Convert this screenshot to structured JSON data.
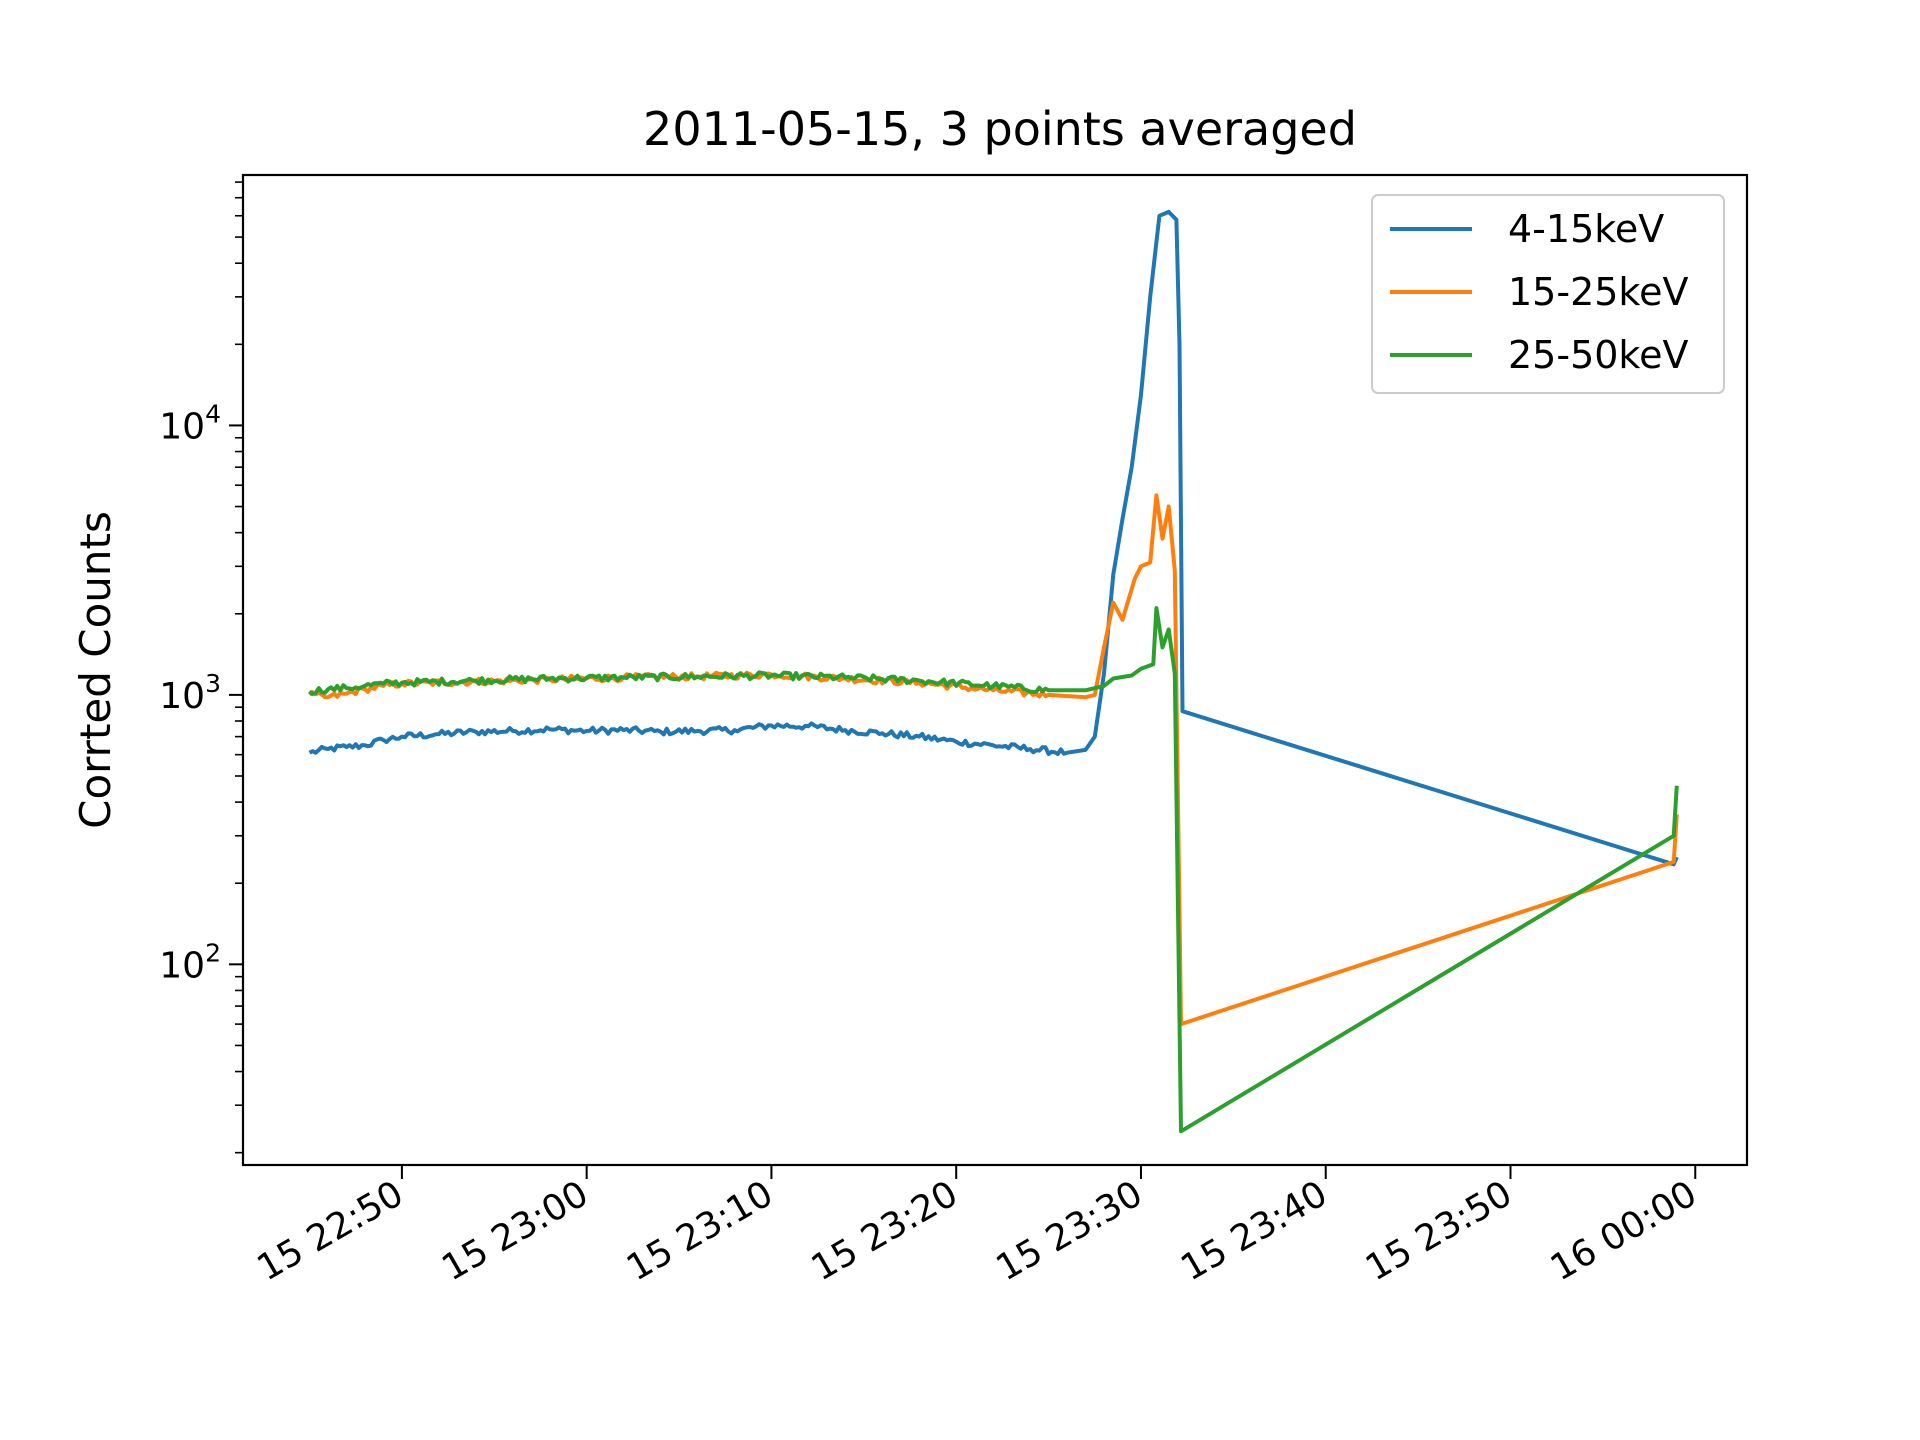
{
  "chart_data": {
    "type": "line",
    "title": "2011-05-15, 3 points averaged",
    "xlabel": "",
    "ylabel": "Corrted Counts",
    "y_scale": "log",
    "ylim": [
      18,
      85000
    ],
    "xlim": [
      "2011-05-15 22:41:24",
      "2011-05-16 00:02:48"
    ],
    "x_ticks": [
      {
        "value": "2011-05-15 22:50",
        "label": "15 22:50"
      },
      {
        "value": "2011-05-15 23:00",
        "label": "15 23:00"
      },
      {
        "value": "2011-05-15 23:10",
        "label": "15 23:10"
      },
      {
        "value": "2011-05-15 23:20",
        "label": "15 23:20"
      },
      {
        "value": "2011-05-15 23:30",
        "label": "15 23:30"
      },
      {
        "value": "2011-05-15 23:40",
        "label": "15 23:40"
      },
      {
        "value": "2011-05-15 23:50",
        "label": "15 23:50"
      },
      {
        "value": "2011-05-16 00:00",
        "label": "16 00:00"
      }
    ],
    "y_ticks": [
      {
        "value": 100,
        "base": "10",
        "exp": "2"
      },
      {
        "value": 1000,
        "base": "10",
        "exp": "3"
      },
      {
        "value": 10000,
        "base": "10",
        "exp": "4"
      }
    ],
    "grid": false,
    "legend_position": "top-right",
    "series": [
      {
        "name": "4-15keV",
        "color": "#1f77b4",
        "points": [
          [
            "2011-05-15 22:45:00",
            610
          ],
          [
            "2011-05-15 22:46:00",
            630
          ],
          [
            "2011-05-15 22:47:00",
            640
          ],
          [
            "2011-05-15 22:48:00",
            650
          ],
          [
            "2011-05-15 22:49:00",
            680
          ],
          [
            "2011-05-15 22:50:00",
            700
          ],
          [
            "2011-05-15 22:52:00",
            715
          ],
          [
            "2011-05-15 22:54:00",
            730
          ],
          [
            "2011-05-15 22:56:00",
            735
          ],
          [
            "2011-05-15 22:58:00",
            745
          ],
          [
            "2011-05-15 23:00:00",
            735
          ],
          [
            "2011-05-15 23:02:00",
            740
          ],
          [
            "2011-05-15 23:04:00",
            730
          ],
          [
            "2011-05-15 23:06:00",
            735
          ],
          [
            "2011-05-15 23:08:00",
            740
          ],
          [
            "2011-05-15 23:10:00",
            770
          ],
          [
            "2011-05-15 23:12:00",
            765
          ],
          [
            "2011-05-15 23:14:00",
            740
          ],
          [
            "2011-05-15 23:16:00",
            720
          ],
          [
            "2011-05-15 23:18:00",
            700
          ],
          [
            "2011-05-15 23:20:00",
            670
          ],
          [
            "2011-05-15 23:22:00",
            650
          ],
          [
            "2011-05-15 23:24:00",
            630
          ],
          [
            "2011-05-15 23:26:00",
            610
          ],
          [
            "2011-05-15 23:27:00",
            625
          ],
          [
            "2011-05-15 23:27:30",
            700
          ],
          [
            "2011-05-15 23:28:00",
            1200
          ],
          [
            "2011-05-15 23:28:30",
            2800
          ],
          [
            "2011-05-15 23:29:00",
            4500
          ],
          [
            "2011-05-15 23:29:30",
            7000
          ],
          [
            "2011-05-15 23:30:00",
            13000
          ],
          [
            "2011-05-15 23:30:30",
            30000
          ],
          [
            "2011-05-15 23:31:00",
            60000
          ],
          [
            "2011-05-15 23:31:30",
            62000
          ],
          [
            "2011-05-15 23:31:55",
            58000
          ],
          [
            "2011-05-15 23:32:05",
            20000
          ],
          [
            "2011-05-15 23:32:15",
            870
          ],
          [
            "2011-05-15 23:58:50",
            235
          ],
          [
            "2011-05-15 23:59:00",
            250
          ]
        ]
      },
      {
        "name": "15-25keV",
        "color": "#ff7f0e",
        "points": [
          [
            "2011-05-15 22:45:00",
            1000
          ],
          [
            "2011-05-15 22:46:00",
            980
          ],
          [
            "2011-05-15 22:47:00",
            1010
          ],
          [
            "2011-05-15 22:48:00",
            1050
          ],
          [
            "2011-05-15 22:49:00",
            1080
          ],
          [
            "2011-05-15 22:50:00",
            1100
          ],
          [
            "2011-05-15 22:54:00",
            1120
          ],
          [
            "2011-05-15 22:58:00",
            1140
          ],
          [
            "2011-05-15 23:02:00",
            1160
          ],
          [
            "2011-05-15 23:06:00",
            1170
          ],
          [
            "2011-05-15 23:10:00",
            1190
          ],
          [
            "2011-05-15 23:14:00",
            1150
          ],
          [
            "2011-05-15 23:18:00",
            1110
          ],
          [
            "2011-05-15 23:22:00",
            1040
          ],
          [
            "2011-05-15 23:25:00",
            1000
          ],
          [
            "2011-05-15 23:27:00",
            980
          ],
          [
            "2011-05-15 23:27:30",
            1000
          ],
          [
            "2011-05-15 23:28:00",
            1500
          ],
          [
            "2011-05-15 23:28:30",
            2200
          ],
          [
            "2011-05-15 23:29:00",
            1900
          ],
          [
            "2011-05-15 23:29:40",
            2700
          ],
          [
            "2011-05-15 23:30:00",
            3000
          ],
          [
            "2011-05-15 23:30:30",
            3100
          ],
          [
            "2011-05-15 23:30:50",
            5500
          ],
          [
            "2011-05-15 23:31:10",
            3800
          ],
          [
            "2011-05-15 23:31:30",
            5000
          ],
          [
            "2011-05-15 23:31:50",
            2900
          ],
          [
            "2011-05-15 23:32:10",
            60
          ],
          [
            "2011-05-15 23:58:50",
            240
          ],
          [
            "2011-05-15 23:59:00",
            360
          ]
        ]
      },
      {
        "name": "25-50keV",
        "color": "#2ca02c",
        "points": [
          [
            "2011-05-15 22:45:00",
            1030
          ],
          [
            "2011-05-15 22:46:00",
            1050
          ],
          [
            "2011-05-15 22:47:00",
            1060
          ],
          [
            "2011-05-15 22:48:00",
            1080
          ],
          [
            "2011-05-15 22:49:00",
            1100
          ],
          [
            "2011-05-15 22:50:00",
            1110
          ],
          [
            "2011-05-15 22:54:00",
            1130
          ],
          [
            "2011-05-15 22:58:00",
            1150
          ],
          [
            "2011-05-15 23:02:00",
            1160
          ],
          [
            "2011-05-15 23:06:00",
            1170
          ],
          [
            "2011-05-15 23:10:00",
            1180
          ],
          [
            "2011-05-15 23:14:00",
            1160
          ],
          [
            "2011-05-15 23:18:00",
            1130
          ],
          [
            "2011-05-15 23:22:00",
            1080
          ],
          [
            "2011-05-15 23:25:00",
            1040
          ],
          [
            "2011-05-15 23:27:00",
            1040
          ],
          [
            "2011-05-15 23:28:00",
            1080
          ],
          [
            "2011-05-15 23:28:30",
            1150
          ],
          [
            "2011-05-15 23:29:30",
            1180
          ],
          [
            "2011-05-15 23:30:00",
            1250
          ],
          [
            "2011-05-15 23:30:40",
            1300
          ],
          [
            "2011-05-15 23:30:50",
            2100
          ],
          [
            "2011-05-15 23:31:10",
            1500
          ],
          [
            "2011-05-15 23:31:30",
            1750
          ],
          [
            "2011-05-15 23:31:50",
            1200
          ],
          [
            "2011-05-15 23:32:10",
            24
          ],
          [
            "2011-05-15 23:58:50",
            300
          ],
          [
            "2011-05-15 23:59:00",
            460
          ]
        ]
      }
    ]
  }
}
